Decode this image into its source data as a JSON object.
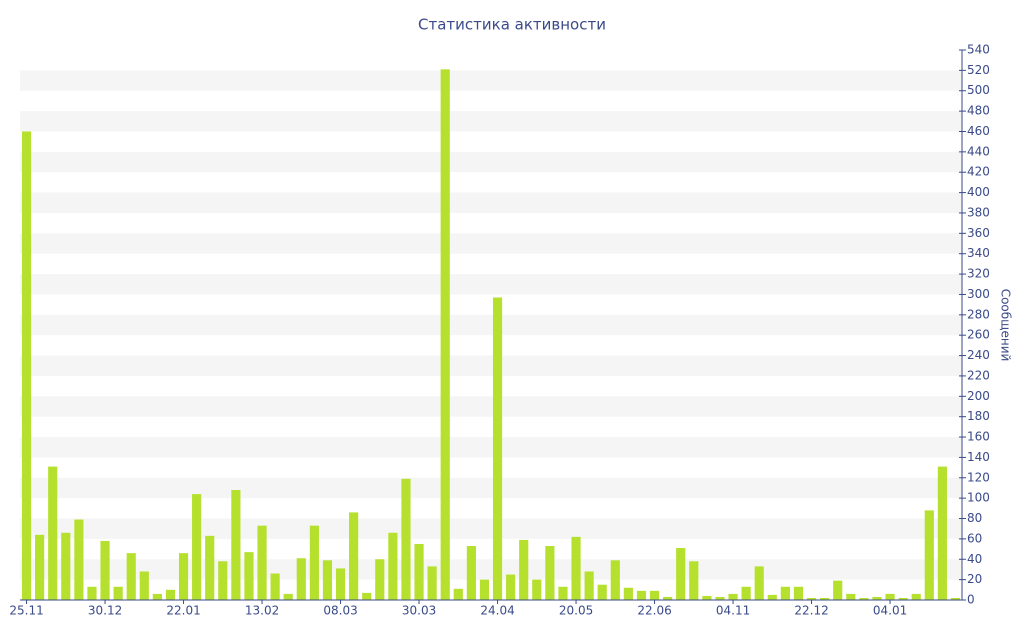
{
  "chart_data": {
    "type": "bar",
    "title": "Статистика активности",
    "y_axis_label": "Сообщений",
    "categories": [
      "25.11",
      null,
      null,
      null,
      null,
      null,
      "30.12",
      null,
      null,
      null,
      null,
      null,
      "22.01",
      null,
      null,
      null,
      null,
      null,
      "13.02",
      null,
      null,
      null,
      null,
      null,
      "08.03",
      null,
      null,
      null,
      null,
      null,
      "30.03",
      null,
      null,
      null,
      null,
      null,
      "24.04",
      null,
      null,
      null,
      null,
      null,
      "20.05",
      null,
      null,
      null,
      null,
      null,
      "22.06",
      null,
      null,
      null,
      null,
      null,
      "04.11",
      null,
      null,
      null,
      null,
      null,
      "22.12",
      null,
      null,
      null,
      null,
      null,
      "04.01",
      null,
      null,
      null,
      null,
      null
    ],
    "values": [
      460,
      64,
      131,
      66,
      79,
      13,
      58,
      13,
      46,
      28,
      6,
      10,
      46,
      104,
      63,
      38,
      108,
      47,
      73,
      26,
      6,
      41,
      73,
      39,
      31,
      86,
      7,
      40,
      66,
      119,
      55,
      33,
      521,
      11,
      53,
      20,
      297,
      25,
      59,
      20,
      53,
      13,
      62,
      28,
      15,
      39,
      12,
      9,
      9,
      3,
      51,
      38,
      4,
      3,
      6,
      13,
      33,
      5,
      13,
      13,
      2,
      2,
      19,
      6,
      2,
      3,
      6,
      2,
      6,
      88,
      131,
      2
    ],
    "color": "#b5e02e",
    "ylim": [
      0,
      540
    ],
    "yticks": [
      0,
      20,
      40,
      60,
      80,
      100,
      120,
      140,
      160,
      180,
      200,
      220,
      240,
      260,
      280,
      300,
      320,
      340,
      360,
      380,
      400,
      420,
      440,
      460,
      480,
      500,
      520,
      540
    ],
    "grid": true,
    "y_axis_side": "right"
  }
}
